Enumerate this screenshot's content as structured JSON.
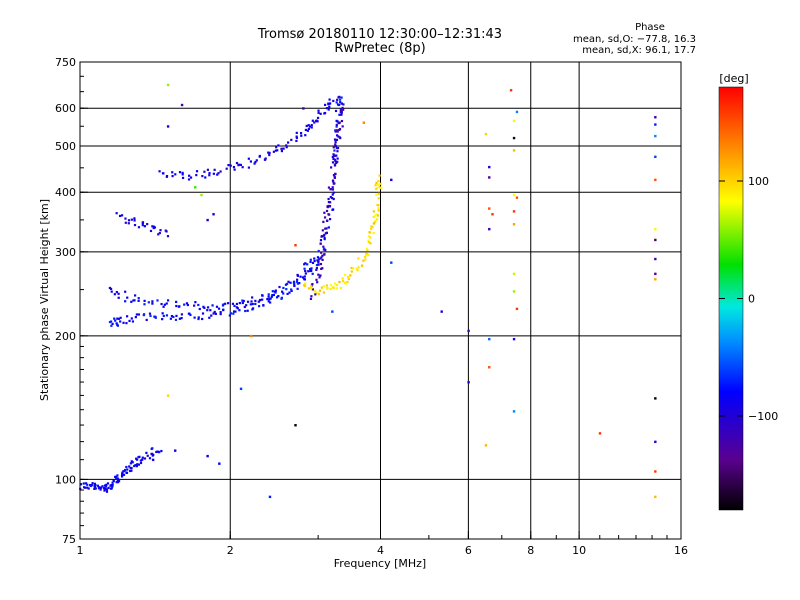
{
  "title_line1": "Tromsø 20180110 12:30:00–12:31:43",
  "title_line2": "RwPretec (8p)",
  "phase_info": {
    "heading": "Phase",
    "line_o": "mean, sd,O: −77.8, 16.3",
    "line_x": "mean, sd,X:  96.1, 17.7"
  },
  "colorbar": {
    "label": "deg",
    "ticks": [
      "100",
      "0",
      "−100"
    ],
    "tick_values": [
      100,
      0,
      -100
    ],
    "range": [
      -180,
      180
    ]
  },
  "chart_data": {
    "type": "scatter",
    "xlabel": "Frequency [MHz]",
    "ylabel": "Stationary phase Virtual Height [km]",
    "xscale": "log",
    "yscale": "log",
    "xlim": [
      1,
      16
    ],
    "ylim": [
      75,
      750
    ],
    "xticks": [
      1,
      2,
      4,
      6,
      8,
      10,
      16
    ],
    "xtick_labels": [
      "1",
      "2",
      "4",
      "6",
      "8",
      "10",
      "16"
    ],
    "yticks": [
      75,
      100,
      200,
      300,
      400,
      500,
      600,
      750
    ],
    "ytick_labels": [
      "75",
      "100",
      "200",
      "300",
      "400",
      "500",
      "600",
      "750"
    ],
    "grid": true,
    "colorscale": "rainbow (black → violet → blue → cyan → green → yellow → red)",
    "traces": [
      {
        "mode": "O",
        "phase_deg": -85,
        "points": [
          [
            1.0,
            97
          ],
          [
            1.05,
            97
          ],
          [
            1.08,
            96
          ],
          [
            1.12,
            96
          ],
          [
            1.15,
            97
          ],
          [
            1.18,
            99
          ],
          [
            1.2,
            101
          ],
          [
            1.23,
            104
          ],
          [
            1.27,
            107
          ],
          [
            1.32,
            110
          ],
          [
            1.38,
            113
          ],
          [
            1.45,
            116
          ]
        ]
      },
      {
        "mode": "O",
        "phase_deg": -80,
        "points": [
          [
            1.15,
            210
          ],
          [
            1.2,
            215
          ],
          [
            1.3,
            218
          ],
          [
            1.45,
            220
          ],
          [
            1.6,
            220
          ],
          [
            1.8,
            221
          ],
          [
            2.0,
            224
          ],
          [
            2.2,
            230
          ],
          [
            2.4,
            238
          ],
          [
            2.6,
            248
          ],
          [
            2.8,
            262
          ],
          [
            2.95,
            280
          ],
          [
            3.05,
            300
          ],
          [
            3.15,
            340
          ],
          [
            3.2,
            400
          ],
          [
            3.25,
            460
          ],
          [
            3.28,
            520
          ],
          [
            3.3,
            600
          ],
          [
            3.32,
            640
          ]
        ]
      },
      {
        "mode": "O",
        "phase_deg": -82,
        "points": [
          [
            1.15,
            250
          ],
          [
            1.25,
            240
          ],
          [
            1.4,
            235
          ],
          [
            1.6,
            232
          ],
          [
            1.8,
            230
          ],
          [
            2.0,
            232
          ],
          [
            2.2,
            236
          ],
          [
            2.4,
            244
          ],
          [
            2.6,
            256
          ],
          [
            2.8,
            272
          ],
          [
            2.95,
            292
          ]
        ]
      },
      {
        "mode": "O",
        "phase_deg": -90,
        "points": [
          [
            1.45,
            435
          ],
          [
            1.6,
            432
          ],
          [
            1.8,
            437
          ],
          [
            2.0,
            448
          ],
          [
            2.2,
            462
          ],
          [
            2.4,
            480
          ],
          [
            2.6,
            505
          ],
          [
            2.8,
            535
          ],
          [
            2.95,
            565
          ],
          [
            3.1,
            600
          ],
          [
            3.2,
            630
          ]
        ]
      },
      {
        "mode": "O",
        "phase_deg": -92,
        "points": [
          [
            1.2,
            355
          ],
          [
            1.3,
            345
          ],
          [
            1.4,
            335
          ],
          [
            1.5,
            328
          ]
        ]
      },
      {
        "mode": "O",
        "phase_deg": -115,
        "points": [
          [
            2.9,
            240
          ],
          [
            3.0,
            270
          ],
          [
            3.05,
            300
          ],
          [
            3.1,
            340
          ],
          [
            3.15,
            380
          ],
          [
            3.2,
            430
          ],
          [
            3.25,
            480
          ],
          [
            3.3,
            530
          ],
          [
            3.33,
            580
          ],
          [
            3.35,
            630
          ]
        ]
      },
      {
        "mode": "X",
        "phase_deg": 95,
        "points": [
          [
            2.8,
            255
          ],
          [
            3.0,
            248
          ],
          [
            3.2,
            252
          ],
          [
            3.4,
            262
          ],
          [
            3.6,
            278
          ],
          [
            3.75,
            300
          ],
          [
            3.85,
            330
          ],
          [
            3.92,
            360
          ],
          [
            3.95,
            400
          ],
          [
            3.97,
            430
          ]
        ]
      }
    ],
    "scatter": [
      {
        "f": 1.5,
        "h": 672,
        "phase_deg": 60
      },
      {
        "f": 1.6,
        "h": 610,
        "phase_deg": -120
      },
      {
        "f": 1.5,
        "h": 550,
        "phase_deg": -100
      },
      {
        "f": 1.5,
        "h": 150,
        "phase_deg": 100
      },
      {
        "f": 1.4,
        "h": 110,
        "phase_deg": -100
      },
      {
        "f": 1.55,
        "h": 115,
        "phase_deg": -90
      },
      {
        "f": 1.8,
        "h": 112,
        "phase_deg": -80
      },
      {
        "f": 1.9,
        "h": 108,
        "phase_deg": -80
      },
      {
        "f": 1.8,
        "h": 350,
        "phase_deg": -100
      },
      {
        "f": 1.85,
        "h": 360,
        "phase_deg": -100
      },
      {
        "f": 1.75,
        "h": 395,
        "phase_deg": 60
      },
      {
        "f": 1.7,
        "h": 410,
        "phase_deg": 40
      },
      {
        "f": 2.1,
        "h": 155,
        "phase_deg": -60
      },
      {
        "f": 2.2,
        "h": 200,
        "phase_deg": 130
      },
      {
        "f": 2.4,
        "h": 92,
        "phase_deg": -70
      },
      {
        "f": 2.7,
        "h": 130,
        "phase_deg": -180
      },
      {
        "f": 2.7,
        "h": 310,
        "phase_deg": 160
      },
      {
        "f": 2.8,
        "h": 600,
        "phase_deg": -120
      },
      {
        "f": 3.2,
        "h": 225,
        "phase_deg": -60
      },
      {
        "f": 3.7,
        "h": 560,
        "phase_deg": 130
      },
      {
        "f": 4.2,
        "h": 285,
        "phase_deg": -60
      },
      {
        "f": 4.2,
        "h": 425,
        "phase_deg": -90
      },
      {
        "f": 5.3,
        "h": 225,
        "phase_deg": -100
      },
      {
        "f": 6.0,
        "h": 205,
        "phase_deg": -120
      },
      {
        "f": 6.0,
        "h": 160,
        "phase_deg": -100
      },
      {
        "f": 6.5,
        "h": 530,
        "phase_deg": 100
      },
      {
        "f": 6.6,
        "h": 452,
        "phase_deg": -100
      },
      {
        "f": 6.6,
        "h": 430,
        "phase_deg": -130
      },
      {
        "f": 6.6,
        "h": 370,
        "phase_deg": 150
      },
      {
        "f": 6.7,
        "h": 360,
        "phase_deg": 160
      },
      {
        "f": 6.6,
        "h": 335,
        "phase_deg": -120
      },
      {
        "f": 6.6,
        "h": 197,
        "phase_deg": -50
      },
      {
        "f": 6.6,
        "h": 172,
        "phase_deg": 150
      },
      {
        "f": 6.5,
        "h": 118,
        "phase_deg": 110
      },
      {
        "f": 7.3,
        "h": 655,
        "phase_deg": 160
      },
      {
        "f": 7.5,
        "h": 590,
        "phase_deg": -40
      },
      {
        "f": 7.4,
        "h": 565,
        "phase_deg": 80
      },
      {
        "f": 7.4,
        "h": 490,
        "phase_deg": 110
      },
      {
        "f": 7.4,
        "h": 520,
        "phase_deg": -170
      },
      {
        "f": 7.4,
        "h": 395,
        "phase_deg": 80
      },
      {
        "f": 7.5,
        "h": 390,
        "phase_deg": 150
      },
      {
        "f": 7.4,
        "h": 365,
        "phase_deg": 160
      },
      {
        "f": 7.4,
        "h": 343,
        "phase_deg": 120
      },
      {
        "f": 7.4,
        "h": 270,
        "phase_deg": 70
      },
      {
        "f": 7.4,
        "h": 248,
        "phase_deg": 60
      },
      {
        "f": 7.5,
        "h": 228,
        "phase_deg": 160
      },
      {
        "f": 7.4,
        "h": 197,
        "phase_deg": -100
      },
      {
        "f": 7.4,
        "h": 139,
        "phase_deg": -40
      },
      {
        "f": 11.0,
        "h": 125,
        "phase_deg": 160
      },
      {
        "f": 14.2,
        "h": 575,
        "phase_deg": -120
      },
      {
        "f": 14.2,
        "h": 555,
        "phase_deg": -70
      },
      {
        "f": 14.2,
        "h": 525,
        "phase_deg": -40
      },
      {
        "f": 14.2,
        "h": 475,
        "phase_deg": -60
      },
      {
        "f": 14.2,
        "h": 425,
        "phase_deg": 150
      },
      {
        "f": 14.2,
        "h": 335,
        "phase_deg": 80
      },
      {
        "f": 14.2,
        "h": 318,
        "phase_deg": -150
      },
      {
        "f": 14.2,
        "h": 290,
        "phase_deg": -120
      },
      {
        "f": 14.2,
        "h": 270,
        "phase_deg": -130
      },
      {
        "f": 14.2,
        "h": 263,
        "phase_deg": 120
      },
      {
        "f": 14.2,
        "h": 148,
        "phase_deg": -180
      },
      {
        "f": 14.2,
        "h": 120,
        "phase_deg": -100
      },
      {
        "f": 14.2,
        "h": 104,
        "phase_deg": 160
      },
      {
        "f": 14.2,
        "h": 92,
        "phase_deg": 110
      }
    ]
  }
}
